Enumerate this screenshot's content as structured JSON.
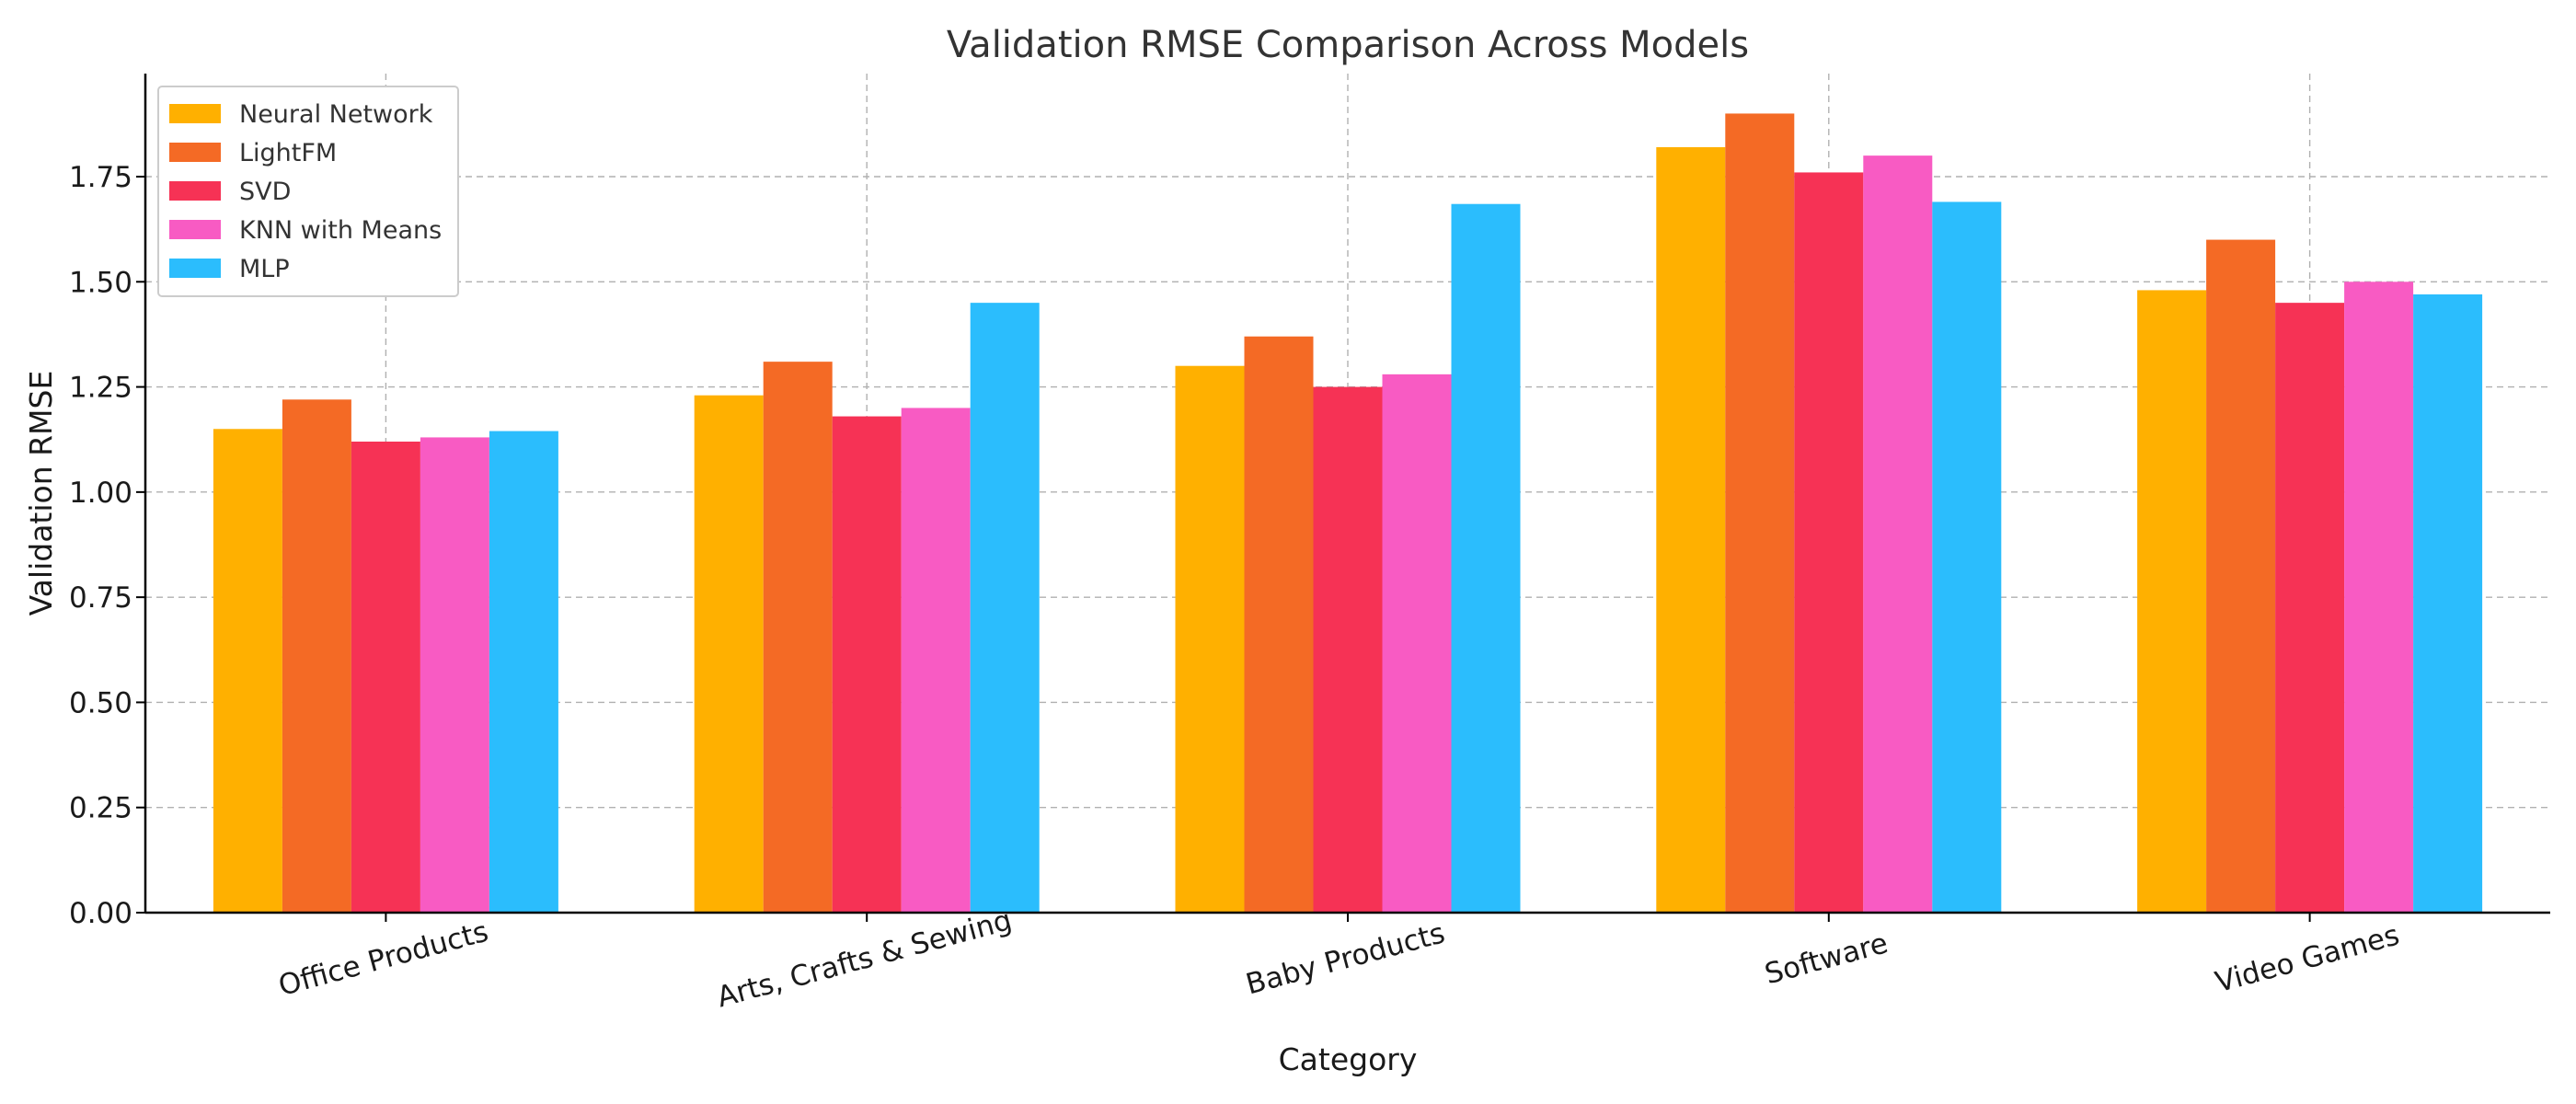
{
  "chart_data": {
    "type": "bar",
    "title": "Validation RMSE Comparison Across Models",
    "xlabel": "Category",
    "ylabel": "Validation RMSE",
    "categories": [
      "Office Products",
      "Arts, Crafts & Sewing",
      "Baby Products",
      "Software",
      "Video Games"
    ],
    "series": [
      {
        "name": "Neural Network",
        "color": "#ffb000",
        "values": [
          1.15,
          1.23,
          1.3,
          1.82,
          1.48
        ]
      },
      {
        "name": "LightFM",
        "color": "#f46a25",
        "values": [
          1.22,
          1.31,
          1.37,
          1.9,
          1.6
        ]
      },
      {
        "name": "SVD",
        "color": "#f63255",
        "values": [
          1.12,
          1.18,
          1.25,
          1.76,
          1.45
        ]
      },
      {
        "name": "KNN with Means",
        "color": "#f85bc3",
        "values": [
          1.13,
          1.2,
          1.28,
          1.8,
          1.5
        ]
      },
      {
        "name": "MLP",
        "color": "#2bbdfd",
        "values": [
          1.145,
          1.45,
          1.685,
          1.69,
          1.47
        ]
      }
    ],
    "ylim": [
      0,
      1.995
    ],
    "yticks": [
      "0.00",
      "0.25",
      "0.50",
      "0.75",
      "1.00",
      "1.25",
      "1.50",
      "1.75"
    ],
    "grid": true,
    "legend_position": "top-left"
  }
}
